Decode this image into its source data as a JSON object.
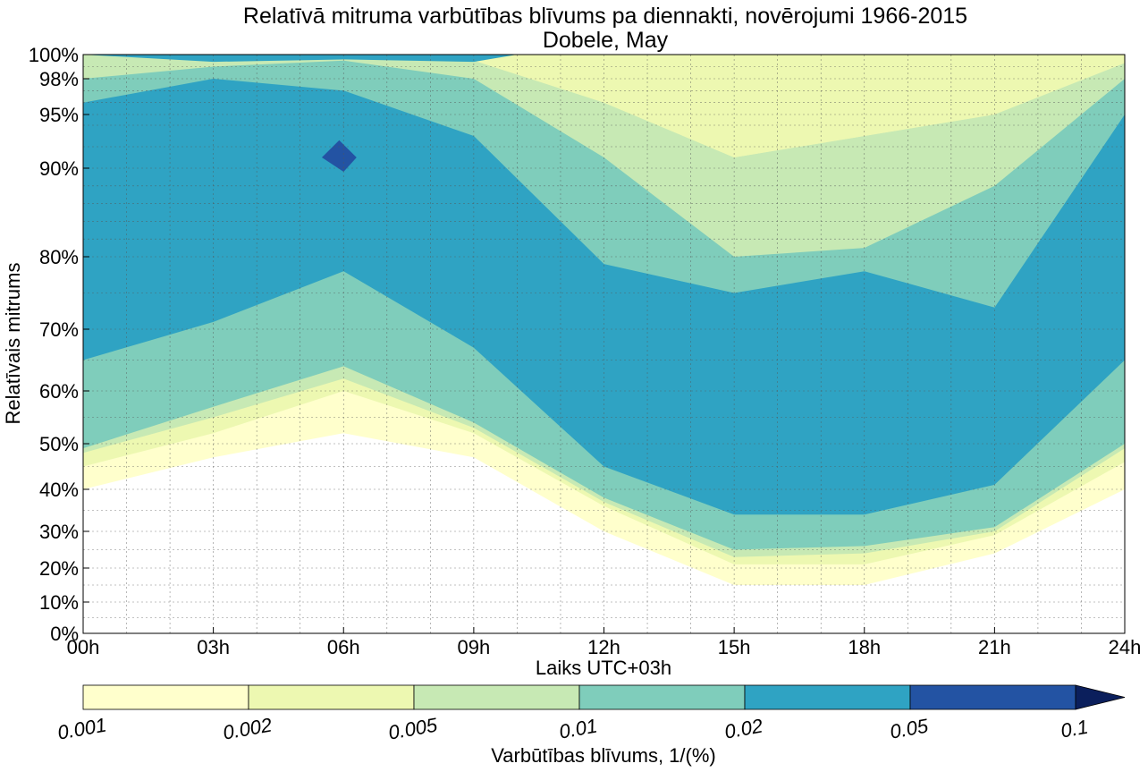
{
  "chart_data": {
    "type": "heatmap",
    "title": "Relatīvā mitruma varbūtības blīvums pa diennakti, novērojumi 1966-2015",
    "subtitle": "Dobele, May",
    "xlabel": "Laiks UTC+03h",
    "ylabel": "Relatīvais mitrums",
    "x_ticks": [
      "00h",
      "03h",
      "06h",
      "09h",
      "12h",
      "15h",
      "18h",
      "21h",
      "24h"
    ],
    "x_range_hours": [
      0,
      24
    ],
    "y_ticks": [
      "0%",
      "10%",
      "20%",
      "30%",
      "40%",
      "50%",
      "60%",
      "70%",
      "80%",
      "90%",
      "95%",
      "98%",
      "100%"
    ],
    "y_tick_values": [
      0,
      10,
      20,
      30,
      40,
      50,
      60,
      70,
      80,
      90,
      95,
      98,
      100
    ],
    "y_scale": "non-linear (stretched towards 100%)",
    "grid": true,
    "colorbar": {
      "label": "Varbūtības blīvums, 1/(%)",
      "ticks": [
        "0.001",
        "0.002",
        "0.005",
        "0.01",
        "0.02",
        "0.05",
        "0.1"
      ],
      "colors": [
        "#ffffcc",
        "#edf8b1",
        "#c7e9b4",
        "#7fcdbb",
        "#2fa3c3",
        "#2353a3",
        "#0b1f5c"
      ],
      "extend": "max",
      "position": "bottom"
    },
    "levels": [
      {
        "range": "0.001-0.002",
        "color": "#ffffcc"
      },
      {
        "range": "0.002-0.005",
        "color": "#edf8b1"
      },
      {
        "range": "0.005-0.01",
        "color": "#c7e9b4"
      },
      {
        "range": "0.01-0.02",
        "color": "#7fcdbb"
      },
      {
        "range": "0.02-0.05",
        "color": "#2fa3c3"
      },
      {
        "range": "0.05-0.1",
        "color": "#2353a3"
      }
    ],
    "hours": [
      0,
      3,
      6,
      9,
      12,
      15,
      18,
      21,
      24
    ],
    "band_boundaries_rh": {
      "outer_lower": [
        40,
        47,
        52,
        47,
        30,
        15,
        15,
        24,
        40
      ],
      "yellow_lower": [
        45,
        52,
        60,
        52,
        36,
        21,
        21,
        29,
        46
      ],
      "green_lower": [
        54,
        63,
        69,
        56,
        40,
        26,
        28,
        33,
        53
      ],
      "teal_lower": [
        65,
        71,
        78,
        67,
        45,
        34,
        34,
        41,
        65
      ],
      "blue_upper": [
        96,
        98,
        97,
        93,
        79,
        75,
        78,
        73,
        95
      ],
      "teal_upper": [
        98,
        99,
        99.5,
        98,
        91,
        80,
        81,
        88,
        98
      ],
      "green_upper": [
        100,
        100,
        100,
        99.5,
        96,
        91,
        93,
        95,
        99.3
      ]
    },
    "peak_region": {
      "hour": 6,
      "rh": 91,
      "density_range": "0.05-0.1"
    }
  }
}
